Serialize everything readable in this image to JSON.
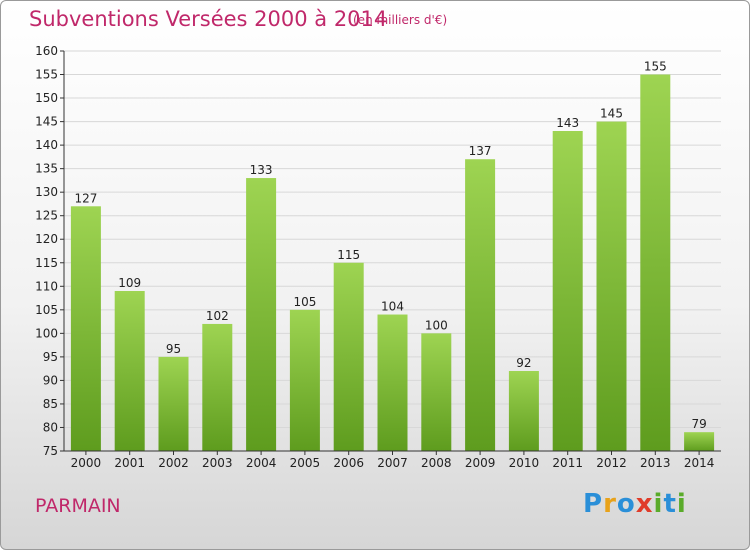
{
  "header": {
    "title": "Subventions Versées 2000 à 2014",
    "unit": "(en milliers d'€)"
  },
  "footer": {
    "commune": "PARMAIN",
    "logo_letters": [
      {
        "ch": "P",
        "color": "#2a8fd8"
      },
      {
        "ch": "r",
        "color": "#e8a21a"
      },
      {
        "ch": "o",
        "color": "#2a8fd8"
      },
      {
        "ch": "x",
        "color": "#e03c2a"
      },
      {
        "ch": "i",
        "color": "#5aab2a"
      },
      {
        "ch": "t",
        "color": "#2a8fd8"
      },
      {
        "ch": "i",
        "color": "#5aab2a"
      }
    ]
  },
  "colors": {
    "bar_top": "#9ed452",
    "bar_bottom": "#5e9c1e",
    "grid": "#d8d8d8",
    "axis": "#333333",
    "accent": "#c0286a"
  },
  "chart_data": {
    "type": "bar",
    "title": "Subventions Versées 2000 à 2014",
    "ylabel": "(en milliers d'€)",
    "xlabel": "",
    "categories": [
      "2000",
      "2001",
      "2002",
      "2003",
      "2004",
      "2005",
      "2006",
      "2007",
      "2008",
      "2009",
      "2010",
      "2011",
      "2012",
      "2013",
      "2014"
    ],
    "values": [
      127,
      109,
      95,
      102,
      133,
      105,
      115,
      104,
      100,
      137,
      92,
      143,
      145,
      155,
      79
    ],
    "ylim": [
      75,
      160
    ],
    "yticks": [
      75,
      80,
      85,
      90,
      95,
      100,
      105,
      110,
      115,
      120,
      125,
      130,
      135,
      140,
      145,
      150,
      155,
      160
    ],
    "grid": true
  }
}
